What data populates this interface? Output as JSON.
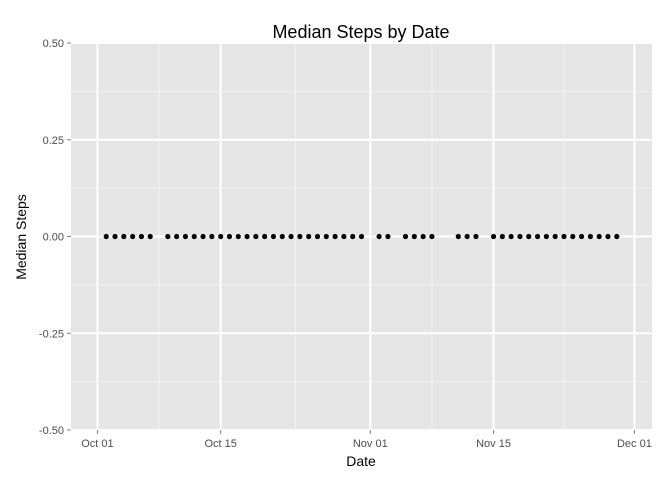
{
  "chart_data": {
    "type": "scatter",
    "title": "Median Steps by Date",
    "xlabel": "Date",
    "ylabel": "Median Steps",
    "x_tick_labels": [
      "Oct 01",
      "Oct 15",
      "Nov 01",
      "Nov 15",
      "Dec 01"
    ],
    "x_tick_dates": [
      "2012-10-01",
      "2012-10-15",
      "2012-11-01",
      "2012-11-15",
      "2012-12-01"
    ],
    "xlim": [
      "2012-09-28",
      "2012-12-03"
    ],
    "y_tick_labels": [
      "0.50",
      "0.25",
      "0.00",
      "-0.25",
      "-0.50"
    ],
    "y_ticks": [
      0.5,
      0.25,
      0,
      -0.25,
      -0.5
    ],
    "ylim": [
      -0.5,
      0.5
    ],
    "grid": true,
    "legend": "none",
    "colors": {
      "panel": "#e5e5e5",
      "grid_major": "#ffffff",
      "grid_minor": "#f2f2f2",
      "point": "#000000"
    },
    "points": [
      {
        "x": "2012-10-02",
        "y": 0
      },
      {
        "x": "2012-10-03",
        "y": 0
      },
      {
        "x": "2012-10-04",
        "y": 0
      },
      {
        "x": "2012-10-05",
        "y": 0
      },
      {
        "x": "2012-10-06",
        "y": 0
      },
      {
        "x": "2012-10-07",
        "y": 0
      },
      {
        "x": "2012-10-09",
        "y": 0
      },
      {
        "x": "2012-10-10",
        "y": 0
      },
      {
        "x": "2012-10-11",
        "y": 0
      },
      {
        "x": "2012-10-12",
        "y": 0
      },
      {
        "x": "2012-10-13",
        "y": 0
      },
      {
        "x": "2012-10-14",
        "y": 0
      },
      {
        "x": "2012-10-15",
        "y": 0
      },
      {
        "x": "2012-10-16",
        "y": 0
      },
      {
        "x": "2012-10-17",
        "y": 0
      },
      {
        "x": "2012-10-18",
        "y": 0
      },
      {
        "x": "2012-10-19",
        "y": 0
      },
      {
        "x": "2012-10-20",
        "y": 0
      },
      {
        "x": "2012-10-21",
        "y": 0
      },
      {
        "x": "2012-10-22",
        "y": 0
      },
      {
        "x": "2012-10-23",
        "y": 0
      },
      {
        "x": "2012-10-24",
        "y": 0
      },
      {
        "x": "2012-10-25",
        "y": 0
      },
      {
        "x": "2012-10-26",
        "y": 0
      },
      {
        "x": "2012-10-27",
        "y": 0
      },
      {
        "x": "2012-10-28",
        "y": 0
      },
      {
        "x": "2012-10-29",
        "y": 0
      },
      {
        "x": "2012-10-30",
        "y": 0
      },
      {
        "x": "2012-10-31",
        "y": 0
      },
      {
        "x": "2012-11-02",
        "y": 0
      },
      {
        "x": "2012-11-03",
        "y": 0
      },
      {
        "x": "2012-11-05",
        "y": 0
      },
      {
        "x": "2012-11-06",
        "y": 0
      },
      {
        "x": "2012-11-07",
        "y": 0
      },
      {
        "x": "2012-11-08",
        "y": 0
      },
      {
        "x": "2012-11-11",
        "y": 0
      },
      {
        "x": "2012-11-12",
        "y": 0
      },
      {
        "x": "2012-11-13",
        "y": 0
      },
      {
        "x": "2012-11-15",
        "y": 0
      },
      {
        "x": "2012-11-16",
        "y": 0
      },
      {
        "x": "2012-11-17",
        "y": 0
      },
      {
        "x": "2012-11-18",
        "y": 0
      },
      {
        "x": "2012-11-19",
        "y": 0
      },
      {
        "x": "2012-11-20",
        "y": 0
      },
      {
        "x": "2012-11-21",
        "y": 0
      },
      {
        "x": "2012-11-22",
        "y": 0
      },
      {
        "x": "2012-11-23",
        "y": 0
      },
      {
        "x": "2012-11-24",
        "y": 0
      },
      {
        "x": "2012-11-25",
        "y": 0
      },
      {
        "x": "2012-11-26",
        "y": 0
      },
      {
        "x": "2012-11-27",
        "y": 0
      },
      {
        "x": "2012-11-28",
        "y": 0
      },
      {
        "x": "2012-11-29",
        "y": 0
      }
    ]
  }
}
